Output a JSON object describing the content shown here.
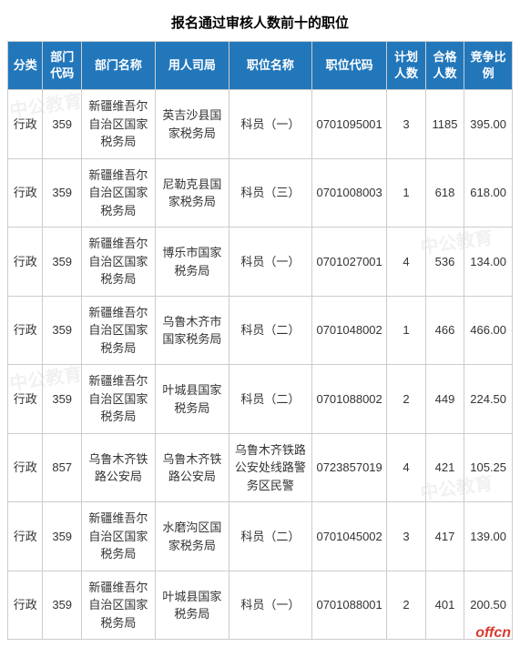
{
  "title": "报名通过审核人数前十的职位",
  "watermark": "offcn",
  "bg_wm_text": "中公教育",
  "theme": {
    "header_bg": "#2277bb",
    "header_fg": "#ffffff",
    "border": "#cccccc",
    "text": "#333333",
    "title_color": "#000000",
    "wm_color": "#d93a2e"
  },
  "columns": [
    "分类",
    "部门代码",
    "部门名称",
    "用人司局",
    "职位名称",
    "职位代码",
    "计划人数",
    "合格人数",
    "竞争比例"
  ],
  "rows": [
    {
      "cat": "行政",
      "dept_code": "359",
      "dept_name": "新疆维吾尔自治区国家税务局",
      "employer": "英吉沙县国家税务局",
      "pos_name": "科员（一）",
      "pos_code": "0701095001",
      "plan": "3",
      "pass": "1185",
      "ratio": "395.00"
    },
    {
      "cat": "行政",
      "dept_code": "359",
      "dept_name": "新疆维吾尔自治区国家税务局",
      "employer": "尼勒克县国家税务局",
      "pos_name": "科员（三）",
      "pos_code": "0701008003",
      "plan": "1",
      "pass": "618",
      "ratio": "618.00"
    },
    {
      "cat": "行政",
      "dept_code": "359",
      "dept_name": "新疆维吾尔自治区国家税务局",
      "employer": "博乐市国家税务局",
      "pos_name": "科员（一）",
      "pos_code": "0701027001",
      "plan": "4",
      "pass": "536",
      "ratio": "134.00"
    },
    {
      "cat": "行政",
      "dept_code": "359",
      "dept_name": "新疆维吾尔自治区国家税务局",
      "employer": "乌鲁木齐市国家税务局",
      "pos_name": "科员（二）",
      "pos_code": "0701048002",
      "plan": "1",
      "pass": "466",
      "ratio": "466.00"
    },
    {
      "cat": "行政",
      "dept_code": "359",
      "dept_name": "新疆维吾尔自治区国家税务局",
      "employer": "叶城县国家税务局",
      "pos_name": "科员（二）",
      "pos_code": "0701088002",
      "plan": "2",
      "pass": "449",
      "ratio": "224.50"
    },
    {
      "cat": "行政",
      "dept_code": "857",
      "dept_name": "乌鲁木齐铁路公安局",
      "employer": "乌鲁木齐铁路公安局",
      "pos_name": "乌鲁木齐铁路公安处线路警务区民警",
      "pos_code": "0723857019",
      "plan": "4",
      "pass": "421",
      "ratio": "105.25"
    },
    {
      "cat": "行政",
      "dept_code": "359",
      "dept_name": "新疆维吾尔自治区国家税务局",
      "employer": "水磨沟区国家税务局",
      "pos_name": "科员（二）",
      "pos_code": "0701045002",
      "plan": "3",
      "pass": "417",
      "ratio": "139.00"
    },
    {
      "cat": "行政",
      "dept_code": "359",
      "dept_name": "新疆维吾尔自治区国家税务局",
      "employer": "叶城县国家税务局",
      "pos_name": "科员（一）",
      "pos_code": "0701088001",
      "plan": "2",
      "pass": "401",
      "ratio": "200.50"
    }
  ]
}
